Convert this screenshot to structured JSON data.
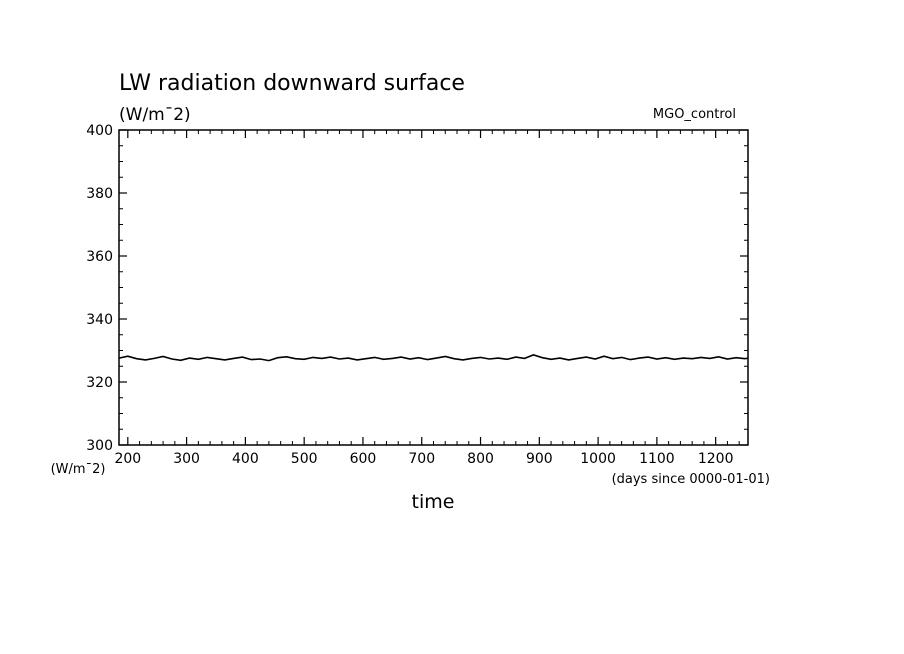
{
  "chart_data": {
    "type": "line",
    "title": "LW radiation downward surface",
    "units_label": "(W/m¯2)",
    "experiment_label": "MGO_control",
    "xlabel": "time",
    "x_units_label": "(days since 0000-01-01)",
    "y_units_label": "(W/m¯2)",
    "xlim": [
      185,
      1255
    ],
    "ylim": [
      300,
      400
    ],
    "x_ticks": [
      200,
      300,
      400,
      500,
      600,
      700,
      800,
      900,
      1000,
      1100,
      1200
    ],
    "y_ticks": [
      300,
      320,
      340,
      360,
      380,
      400
    ],
    "series": [
      {
        "name": "LW radiation downward surface",
        "x": [
          185,
          200,
          215,
          230,
          245,
          260,
          275,
          290,
          305,
          320,
          335,
          350,
          365,
          380,
          395,
          410,
          425,
          440,
          455,
          470,
          485,
          500,
          515,
          530,
          545,
          560,
          575,
          590,
          605,
          620,
          635,
          650,
          665,
          680,
          695,
          710,
          725,
          740,
          755,
          770,
          785,
          800,
          815,
          830,
          845,
          860,
          875,
          890,
          905,
          920,
          935,
          950,
          965,
          980,
          995,
          1010,
          1025,
          1040,
          1055,
          1070,
          1085,
          1100,
          1115,
          1130,
          1145,
          1160,
          1175,
          1190,
          1205,
          1220,
          1235,
          1250,
          1255
        ],
        "values": [
          327.6,
          328.2,
          327.4,
          327.0,
          327.5,
          328.1,
          327.3,
          326.9,
          327.6,
          327.2,
          327.8,
          327.4,
          327.0,
          327.5,
          327.9,
          327.1,
          327.3,
          326.8,
          327.7,
          328.0,
          327.4,
          327.2,
          327.8,
          327.5,
          327.9,
          327.3,
          327.6,
          327.0,
          327.4,
          327.8,
          327.2,
          327.5,
          327.9,
          327.3,
          327.7,
          327.1,
          327.6,
          328.1,
          327.4,
          327.0,
          327.5,
          327.8,
          327.3,
          327.6,
          327.2,
          327.9,
          327.5,
          328.6,
          327.7,
          327.2,
          327.6,
          327.0,
          327.5,
          327.9,
          327.3,
          328.2,
          327.4,
          327.8,
          327.1,
          327.6,
          327.9,
          327.3,
          327.7,
          327.2,
          327.6,
          327.4,
          327.8,
          327.5,
          328.0,
          327.3,
          327.7,
          327.4,
          327.6
        ]
      }
    ]
  }
}
